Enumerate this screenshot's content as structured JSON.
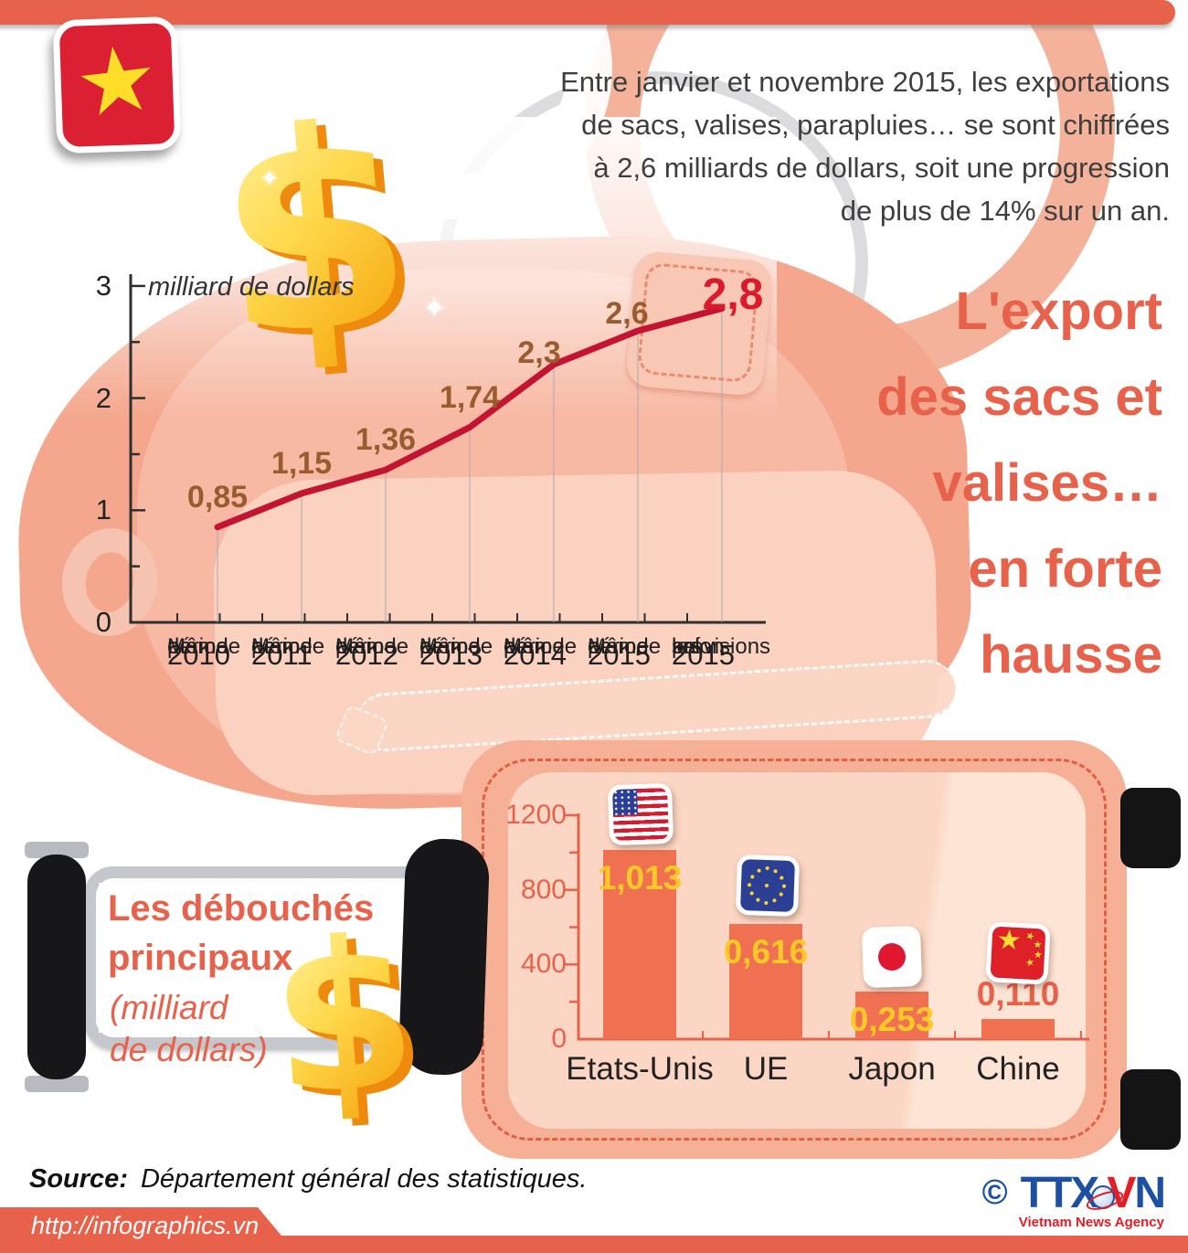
{
  "accent_color": "#e8614b",
  "intro": {
    "lines": [
      "Entre janvier et novembre 2015, les exportations",
      "de sacs, valises, parapluies… se sont chiffrées",
      "à 2,6 milliards de dollars, soit une progression",
      "de plus de 14% sur un an."
    ]
  },
  "headline": {
    "lines": [
      "L'export",
      "des sacs et",
      "valises…",
      "en forte",
      "hausse"
    ]
  },
  "flag_vietnam": {
    "star": "★"
  },
  "line_chart": {
    "unit_label": "milliard de dollars",
    "y_ticks": [
      "0",
      "1",
      "2",
      "3"
    ],
    "values": [
      0.85,
      1.15,
      1.36,
      1.74,
      2.3,
      2.6,
      2.8
    ],
    "labels": [
      "0,85",
      "1,15",
      "1,36",
      "1,74",
      "2,3",
      "2,6",
      "2,8"
    ],
    "categories": [
      {
        "lines": [
          "Même",
          "période",
          "de"
        ],
        "year": "2010"
      },
      {
        "lines": [
          "Même",
          "période",
          "de"
        ],
        "year": "2011"
      },
      {
        "lines": [
          "Même",
          "période",
          "de"
        ],
        "year": "2012"
      },
      {
        "lines": [
          "Même",
          "période",
          "de"
        ],
        "year": "2013"
      },
      {
        "lines": [
          "Même",
          "période",
          "de"
        ],
        "year": "2014"
      },
      {
        "lines": [
          "Même",
          "période",
          "de"
        ],
        "year": "2015"
      },
      {
        "lines": [
          "selon",
          "les",
          "prévisions"
        ],
        "year": "2015"
      }
    ],
    "line_color": "#c31432",
    "label_color": "#9a5c2f",
    "highlight_color": "#da1b2c",
    "axis_color": "#2f2f2f"
  },
  "panel": {
    "title_lines": [
      "Les débouchés",
      "principaux"
    ],
    "unit_lines": [
      "(milliard",
      "de dollars)"
    ]
  },
  "bar_chart": {
    "y_ticks": [
      "0",
      "400",
      "800",
      "1200"
    ],
    "bars": [
      {
        "name": "Etats-Unis",
        "label": "1,013",
        "value": 1013,
        "flag": "us"
      },
      {
        "name": "UE",
        "label": "0,616",
        "value": 616,
        "flag": "eu"
      },
      {
        "name": "Japon",
        "label": "0,253",
        "value": 253,
        "flag": "japan"
      },
      {
        "name": "Chine",
        "label": "0,110",
        "value": 110,
        "flag": "china"
      }
    ],
    "bar_color": "#ef7152",
    "on_bar_label_color": "#fdc926",
    "above_bar_label_color": "#e8614b",
    "axis_color": "#e8614b"
  },
  "footer": {
    "source_label": "Source:",
    "source_text": "Département général des statistiques.",
    "url": "http://infographics.vn",
    "copyright_symbol": "©",
    "logo_part1": "TTX",
    "logo_part2": "V",
    "logo_part3": "N",
    "tagline": "Vietnam News Agency"
  },
  "chart_data": [
    {
      "type": "line",
      "title": "L'export des sacs et valises… en forte hausse",
      "ylabel": "milliard de dollars",
      "ylim": [
        0,
        3
      ],
      "categories": [
        "Même période de 2010",
        "Même période de 2011",
        "Même période de 2012",
        "Même période de 2013",
        "Même période de 2014",
        "Même période de 2015",
        "selon les prévisions 2015"
      ],
      "values": [
        0.85,
        1.15,
        1.36,
        1.74,
        2.3,
        2.6,
        2.8
      ],
      "grid": "vertical-per-point",
      "legend": "none"
    },
    {
      "type": "bar",
      "title": "Les débouchés principaux (milliard de dollars)",
      "categories": [
        "Etats-Unis",
        "UE",
        "Japon",
        "Chine"
      ],
      "values": [
        1013,
        616,
        253,
        110
      ],
      "value_labels": [
        "1,013",
        "0,616",
        "0,253",
        "0,110"
      ],
      "ylim": [
        0,
        1200
      ],
      "y_ticks": [
        0,
        400,
        800,
        1200
      ],
      "grid": "off",
      "legend": "none"
    }
  ]
}
